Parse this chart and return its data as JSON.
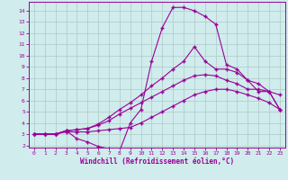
{
  "xlabel": "Windchill (Refroidissement éolien,°C)",
  "bg_color": "#d0ecec",
  "line_color": "#990099",
  "grid_color": "#b0c8c8",
  "xlim": [
    -0.5,
    23.5
  ],
  "ylim": [
    1.8,
    14.8
  ],
  "xticks": [
    0,
    1,
    2,
    3,
    4,
    5,
    6,
    7,
    8,
    9,
    10,
    11,
    12,
    13,
    14,
    15,
    16,
    17,
    18,
    19,
    20,
    21,
    22,
    23
  ],
  "yticks": [
    2,
    3,
    4,
    5,
    6,
    7,
    8,
    9,
    10,
    11,
    12,
    13,
    14
  ],
  "line1_x": [
    0,
    1,
    2,
    3,
    4,
    5,
    6,
    7,
    8,
    9,
    10,
    11,
    12,
    13,
    14,
    15,
    16,
    17,
    18,
    19,
    20,
    21,
    22,
    23
  ],
  "line1_y": [
    3,
    3,
    3,
    3.2,
    3.2,
    3.2,
    3.3,
    3.4,
    3.5,
    3.6,
    4.0,
    4.5,
    5.0,
    5.5,
    6.0,
    6.5,
    6.8,
    7.0,
    7.0,
    6.8,
    6.5,
    6.2,
    5.8,
    5.2
  ],
  "line2_x": [
    0,
    1,
    2,
    3,
    4,
    5,
    6,
    7,
    8,
    9,
    10,
    11,
    12,
    13,
    14,
    15,
    16,
    17,
    18,
    19,
    20,
    21,
    22,
    23
  ],
  "line2_y": [
    3,
    3,
    3,
    3.3,
    3.4,
    3.5,
    3.8,
    4.2,
    4.8,
    5.3,
    5.8,
    6.3,
    6.8,
    7.3,
    7.8,
    8.2,
    8.3,
    8.2,
    7.8,
    7.5,
    7.0,
    7.0,
    6.8,
    6.5
  ],
  "line3_x": [
    0,
    1,
    2,
    3,
    4,
    5,
    6,
    7,
    8,
    9,
    10,
    11,
    12,
    13,
    14,
    15,
    16,
    17,
    18,
    19,
    20,
    21,
    22,
    23
  ],
  "line3_y": [
    3,
    3,
    3,
    3.3,
    3.4,
    3.5,
    3.9,
    4.5,
    5.2,
    5.8,
    6.5,
    7.3,
    8.0,
    8.8,
    9.5,
    10.8,
    9.5,
    8.8,
    8.8,
    8.5,
    7.8,
    7.5,
    6.8,
    5.2
  ],
  "line4_x": [
    0,
    1,
    2,
    3,
    4,
    5,
    6,
    7,
    8,
    9,
    10,
    11,
    12,
    13,
    14,
    15,
    16,
    17,
    18,
    19,
    20,
    21,
    22,
    23
  ],
  "line4_y": [
    3,
    3,
    3,
    3.3,
    2.6,
    2.3,
    1.9,
    1.7,
    1.5,
    4.0,
    5.2,
    9.5,
    12.5,
    14.3,
    14.3,
    14.0,
    13.5,
    12.8,
    9.2,
    8.8,
    7.8,
    6.8,
    6.8,
    5.2
  ]
}
